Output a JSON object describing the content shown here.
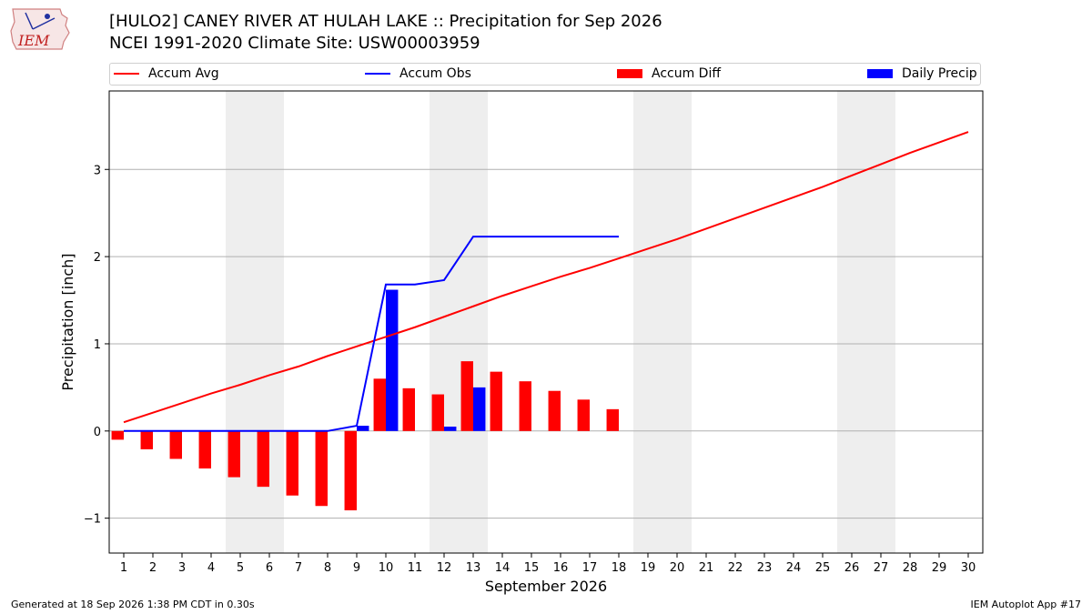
{
  "header": {
    "title_line1": "[HULO2] CANEY RIVER  AT HULAH LAKE :: Precipitation for Sep 2026",
    "title_line2": "NCEI 1991-2020 Climate Site: USW00003959",
    "logo_text": "IEM"
  },
  "footer": {
    "generated": "Generated at 18 Sep 2026 1:38 PM CDT in 0.30s",
    "app": "IEM Autoplot App #17"
  },
  "colors": {
    "avg": "#ff0000",
    "obs": "#0000ff",
    "diff": "#ff0000",
    "daily": "#0000ff",
    "weekend": "#eeeeee",
    "grid": "#b0b0b0"
  },
  "chart_data": {
    "type": "bar",
    "xlabel": "September 2026",
    "ylabel": "Precipitation [inch]",
    "xlim": [
      0.5,
      30.5
    ],
    "ylim": [
      -1.4,
      3.9
    ],
    "yticks": [
      -1,
      0,
      1,
      2,
      3
    ],
    "ytick_labels": [
      "−1",
      "0",
      "1",
      "2",
      "3"
    ],
    "x_ticks": [
      1,
      2,
      3,
      4,
      5,
      6,
      7,
      8,
      9,
      10,
      11,
      12,
      13,
      14,
      15,
      16,
      17,
      18,
      19,
      20,
      21,
      22,
      23,
      24,
      25,
      26,
      27,
      28,
      29,
      30
    ],
    "weekend_bands": [
      [
        5,
        6
      ],
      [
        12,
        13
      ],
      [
        19,
        20
      ],
      [
        26,
        27
      ]
    ],
    "grid": "horizontal",
    "legend_position": "top",
    "legend": [
      "Accum Avg",
      "Accum Obs",
      "Accum Diff",
      "Daily Precip"
    ],
    "accum_avg": {
      "days": [
        1,
        2,
        3,
        4,
        5,
        6,
        7,
        8,
        9,
        10,
        11,
        12,
        13,
        14,
        15,
        16,
        17,
        18,
        19,
        20,
        21,
        22,
        23,
        24,
        25,
        26,
        27,
        28,
        29,
        30
      ],
      "values": [
        0.1,
        0.21,
        0.32,
        0.43,
        0.53,
        0.64,
        0.74,
        0.86,
        0.97,
        1.08,
        1.19,
        1.31,
        1.43,
        1.55,
        1.66,
        1.77,
        1.87,
        1.98,
        2.09,
        2.2,
        2.32,
        2.44,
        2.56,
        2.68,
        2.8,
        2.93,
        3.06,
        3.19,
        3.31,
        3.43
      ]
    },
    "accum_obs": {
      "days": [
        1,
        2,
        3,
        4,
        5,
        6,
        7,
        8,
        9,
        10,
        11,
        12,
        13,
        14,
        15,
        16,
        17,
        18
      ],
      "values": [
        0,
        0,
        0,
        0,
        0,
        0,
        0,
        0,
        0.06,
        1.68,
        1.68,
        1.73,
        2.23,
        2.23,
        2.23,
        2.23,
        2.23,
        2.23
      ]
    },
    "accum_diff": {
      "days": [
        1,
        2,
        3,
        4,
        5,
        6,
        7,
        8,
        9,
        10,
        11,
        12,
        13,
        14,
        15,
        16,
        17,
        18
      ],
      "values": [
        -0.1,
        -0.21,
        -0.32,
        -0.43,
        -0.53,
        -0.64,
        -0.74,
        -0.86,
        -0.91,
        0.6,
        0.49,
        0.42,
        0.8,
        0.68,
        0.57,
        0.46,
        0.36,
        0.25
      ]
    },
    "daily_precip": {
      "days": [
        9,
        10,
        12,
        13
      ],
      "values": [
        0.06,
        1.62,
        0.05,
        0.5
      ]
    }
  }
}
